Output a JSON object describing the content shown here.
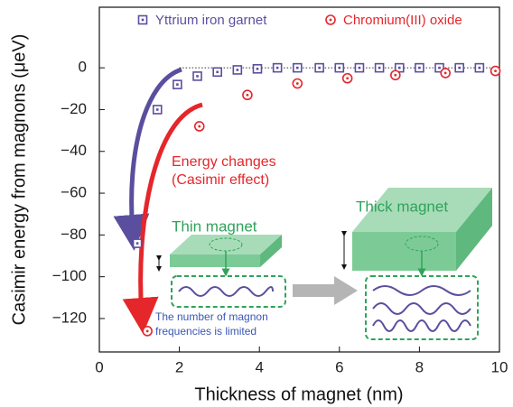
{
  "chart_data": {
    "type": "scatter",
    "xlabel": "Thickness of magnet (nm)",
    "ylabel": "Casimir energy from magnons (μeV)",
    "xlim": [
      0,
      10
    ],
    "xticks": [
      0,
      2,
      4,
      6,
      8,
      10
    ],
    "ylim": [
      -136,
      29
    ],
    "yticks": [
      0,
      {
        "value": -20,
        "label": "−20"
      },
      {
        "value": -40,
        "label": "−40"
      },
      {
        "value": -60,
        "label": "−60"
      },
      {
        "value": -80,
        "label": "−80"
      },
      {
        "value": -100,
        "label": "−100"
      },
      {
        "value": -120,
        "label": "−120"
      }
    ],
    "series": [
      {
        "name": "Yttrium iron garnet",
        "color": "#5a4f9e",
        "marker": "square",
        "x": [
          0.95,
          1.45,
          1.95,
          2.45,
          2.95,
          3.45,
          3.95,
          4.45,
          4.95,
          5.5,
          6.0,
          6.5,
          7.0,
          7.5,
          8.0,
          8.5,
          9.0,
          9.5
        ],
        "values": [
          -84,
          -20,
          -8,
          -4,
          -2,
          -1,
          -0.5,
          0,
          0,
          0,
          0,
          0,
          0,
          0,
          0,
          0,
          0,
          0
        ]
      },
      {
        "name": "Chromium(III) oxide",
        "color": "#e5262b",
        "marker": "circle",
        "x": [
          1.2,
          2.5,
          3.7,
          4.95,
          6.2,
          7.4,
          8.65,
          9.9
        ],
        "values": [
          -126,
          -28,
          -13,
          -7.5,
          -5,
          -3.5,
          -2.5,
          -1.5
        ]
      }
    ],
    "annotations": {
      "energy_1": "Energy changes",
      "energy_2": "(Casimir effect)",
      "thin": "Thin magnet",
      "thick": "Thick magnet",
      "limit_1": "The number of magnon",
      "limit_2": "frequencies is limited"
    }
  }
}
